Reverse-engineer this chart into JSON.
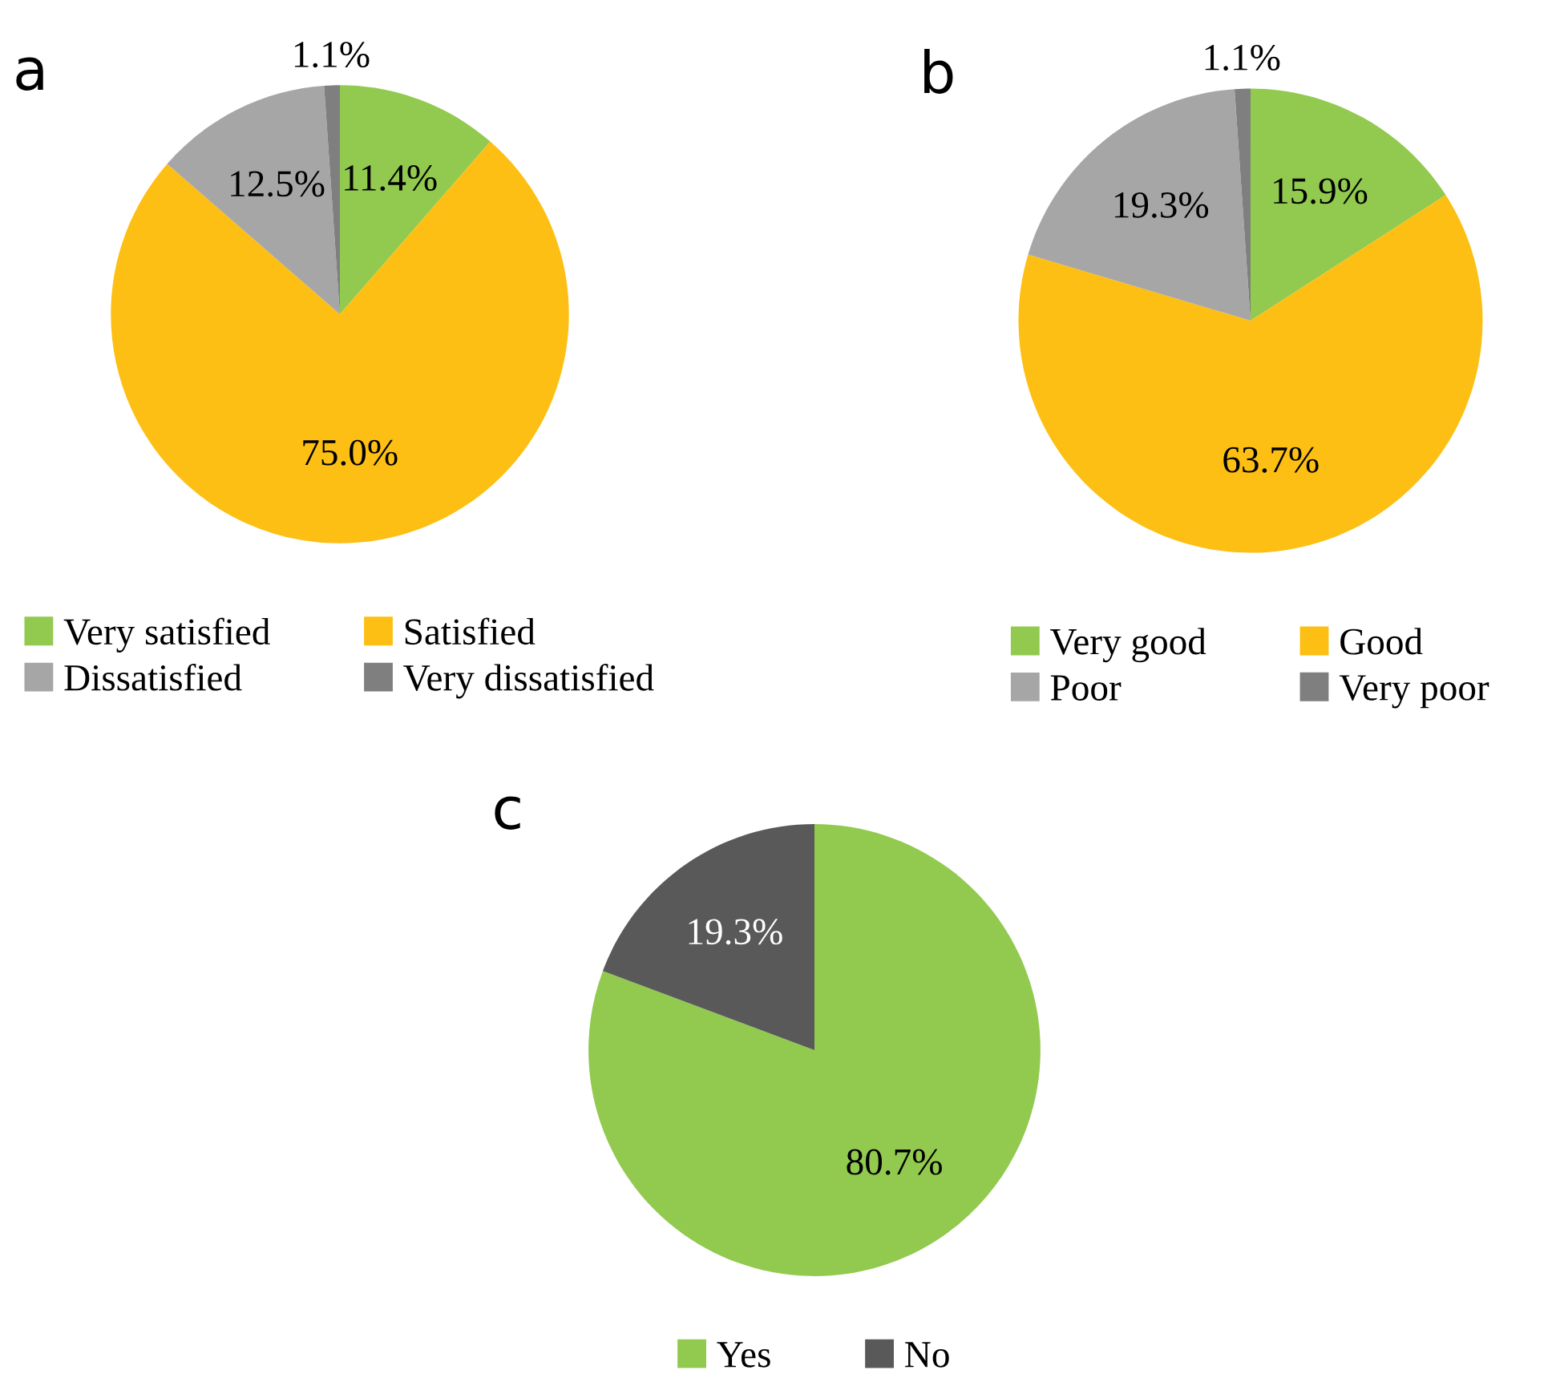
{
  "chart_data": [
    {
      "type": "pie",
      "title": "a",
      "categories": [
        "Very satisfied",
        "Satisfied",
        "Dissatisfied",
        "Very dissatisfied"
      ],
      "values": [
        11.4,
        75.0,
        12.5,
        1.1
      ],
      "colors": [
        "#92c94f",
        "#fdbf13",
        "#a6a6a6",
        "#7f7f7f"
      ],
      "value_labels": [
        "11.4%",
        "75.0%",
        "12.5%",
        "1.1%"
      ],
      "legend": "bottom"
    },
    {
      "type": "pie",
      "title": "b",
      "categories": [
        "Very good",
        "Good",
        "Poor",
        "Very poor"
      ],
      "values": [
        15.9,
        63.7,
        19.3,
        1.1
      ],
      "colors": [
        "#92c94f",
        "#fdbf13",
        "#a6a6a6",
        "#7f7f7f"
      ],
      "value_labels": [
        "15.9%",
        "63.7%",
        "19.3%",
        "1.1%"
      ],
      "legend": "bottom"
    },
    {
      "type": "pie",
      "title": "c",
      "categories": [
        "Yes",
        "No"
      ],
      "values": [
        80.7,
        19.3
      ],
      "colors": [
        "#92c94f",
        "#595959"
      ],
      "value_labels": [
        "80.7%",
        "19.3%"
      ],
      "legend": "bottom"
    }
  ]
}
